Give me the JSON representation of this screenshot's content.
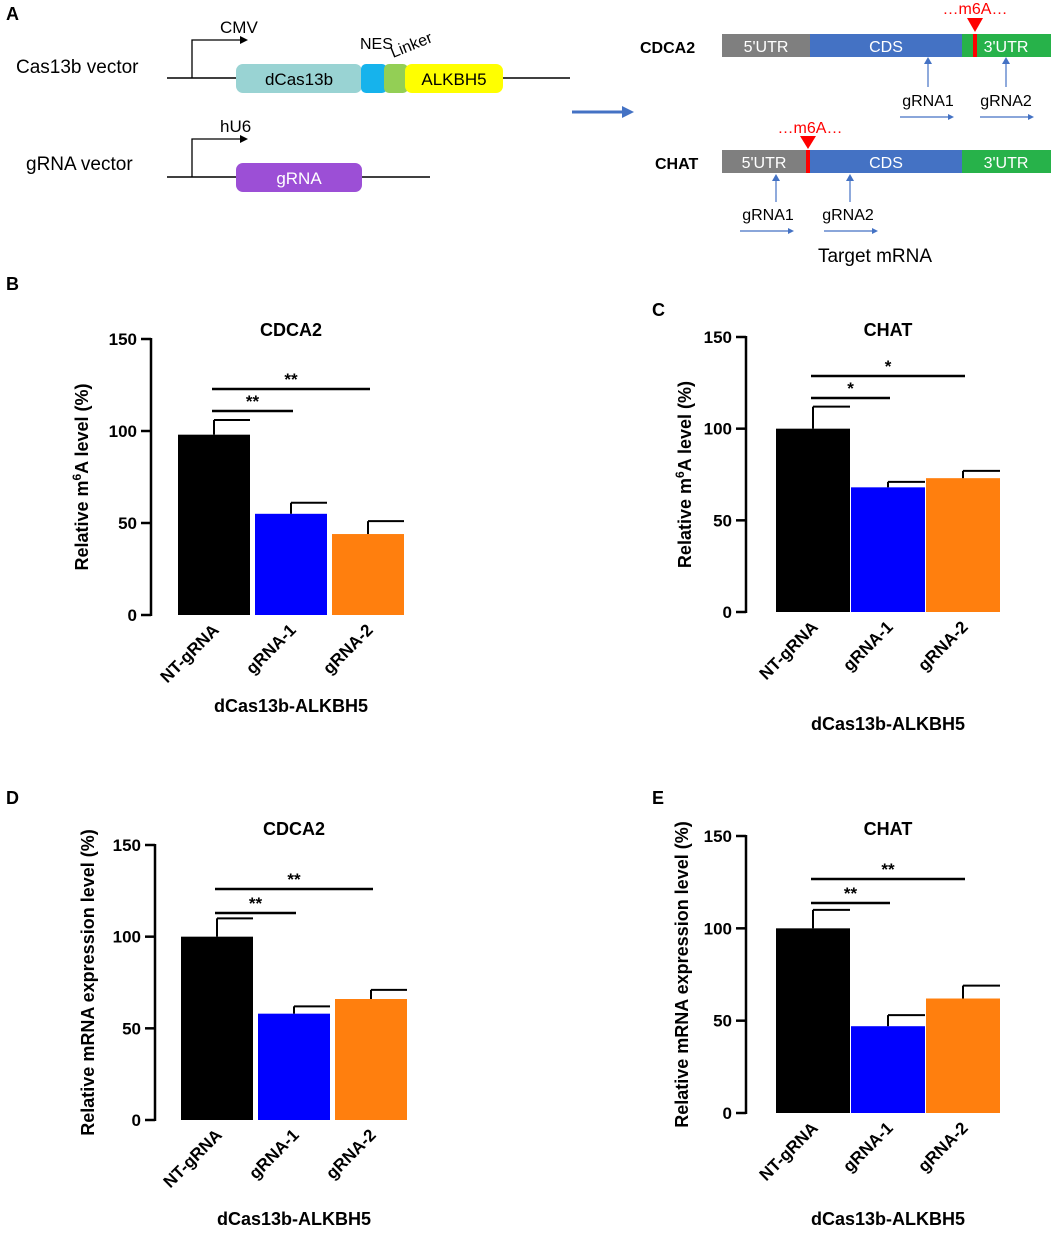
{
  "panel_labels": [
    "A",
    "B",
    "C",
    "D",
    "E"
  ],
  "schematic": {
    "cas13b_vector": {
      "label": "Cas13b vector",
      "promoter": "CMV",
      "parts": [
        {
          "label": "dCas13b",
          "color": "#99d3d3"
        },
        {
          "label": "",
          "color": "#16b3ec"
        },
        {
          "label": "",
          "color": "#93cf55"
        },
        {
          "label": "ALKBH5",
          "color": "#ffff00"
        }
      ],
      "nes_label": "NES",
      "linker_label": "Linker"
    },
    "grna_vector": {
      "label": "gRNA vector",
      "promoter": "hU6",
      "part": {
        "label": "gRNA",
        "color": "#9c4fd6"
      }
    },
    "arrow_color": "#4472c4",
    "mrna_colors": {
      "utr5": "#7f7f7f",
      "cds": "#4472c4",
      "utr3": "#27b24a",
      "m6a": "#ff0000"
    },
    "targets": [
      {
        "name": "CDCA2",
        "utr5": "5'UTR",
        "cds": "CDS",
        "utr3": "3'UTR",
        "m6a_label": "…m6A…",
        "grnas": [
          "gRNA1",
          "gRNA2"
        ]
      },
      {
        "name": "CHAT",
        "utr5": "5'UTR",
        "cds": "CDS",
        "utr3": "3'UTR",
        "m6a_label": "…m6A…",
        "grnas": [
          "gRNA1",
          "gRNA2"
        ]
      }
    ],
    "target_caption": "Target mRNA"
  },
  "chart_data": [
    {
      "panel": "B",
      "type": "bar",
      "title": "CDCA2",
      "categories": [
        "NT-gRNA",
        "gRNA-1",
        "gRNA-2"
      ],
      "values": [
        98,
        55,
        44
      ],
      "errors": [
        8,
        6,
        7
      ],
      "colors": [
        "#000000",
        "#0000ff",
        "#ff7f0e"
      ],
      "ylabel_pre": "Relative m",
      "ylabel_sup": "6",
      "ylabel_post": "A level (%)",
      "xlabel": "dCas13b-ALKBH5",
      "ylim": [
        0,
        150
      ],
      "yticks": [
        "0",
        "50",
        "100",
        "150"
      ],
      "significance": [
        {
          "from": 0,
          "to": 1,
          "label": "**"
        },
        {
          "from": 0,
          "to": 2,
          "label": "**"
        }
      ]
    },
    {
      "panel": "C",
      "type": "bar",
      "title": "CHAT",
      "categories": [
        "NT-gRNA",
        "gRNA-1",
        "gRNA-2"
      ],
      "values": [
        100,
        68,
        73
      ],
      "errors": [
        12,
        3,
        4
      ],
      "colors": [
        "#000000",
        "#0000ff",
        "#ff7f0e"
      ],
      "ylabel_pre": "Relative m",
      "ylabel_sup": "6",
      "ylabel_post": "A level (%)",
      "xlabel": "dCas13b-ALKBH5",
      "ylim": [
        0,
        150
      ],
      "yticks": [
        "0",
        "50",
        "100",
        "150"
      ],
      "significance": [
        {
          "from": 0,
          "to": 1,
          "label": "*"
        },
        {
          "from": 0,
          "to": 2,
          "label": "*"
        }
      ]
    },
    {
      "panel": "D",
      "type": "bar",
      "title": "CDCA2",
      "categories": [
        "NT-gRNA",
        "gRNA-1",
        "gRNA-2"
      ],
      "values": [
        100,
        58,
        66
      ],
      "errors": [
        10,
        4,
        5
      ],
      "colors": [
        "#000000",
        "#0000ff",
        "#ff7f0e"
      ],
      "ylabel_pre": "Relative mRNA expression level (%)",
      "ylabel_sup": "",
      "ylabel_post": "",
      "xlabel": "dCas13b-ALKBH5",
      "ylim": [
        0,
        150
      ],
      "yticks": [
        "0",
        "50",
        "100",
        "150"
      ],
      "significance": [
        {
          "from": 0,
          "to": 1,
          "label": "**"
        },
        {
          "from": 0,
          "to": 2,
          "label": "**"
        }
      ]
    },
    {
      "panel": "E",
      "type": "bar",
      "title": "CHAT",
      "categories": [
        "NT-gRNA",
        "gRNA-1",
        "gRNA-2"
      ],
      "values": [
        100,
        47,
        62
      ],
      "errors": [
        10,
        6,
        7
      ],
      "colors": [
        "#000000",
        "#0000ff",
        "#ff7f0e"
      ],
      "ylabel_pre": "Relative mRNA expression level (%)",
      "ylabel_sup": "",
      "ylabel_post": "",
      "xlabel": "dCas13b-ALKBH5",
      "ylim": [
        0,
        150
      ],
      "yticks": [
        "0",
        "50",
        "100",
        "150"
      ],
      "significance": [
        {
          "from": 0,
          "to": 1,
          "label": "**"
        },
        {
          "from": 0,
          "to": 2,
          "label": "**"
        }
      ]
    }
  ]
}
